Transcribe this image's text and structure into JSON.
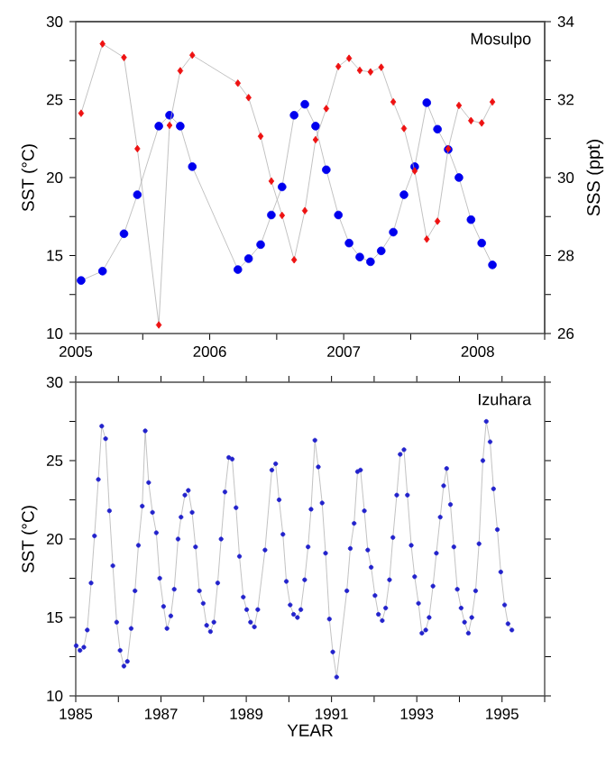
{
  "chart_data": [
    {
      "type": "line",
      "title": "Mosulpo",
      "ylabel": "SST (°C)",
      "y2label": "SSS (ppt)",
      "x": [
        2005.04,
        2005.2,
        2005.36,
        2005.46,
        2005.62,
        2005.7,
        2005.78,
        2005.87,
        2006.21,
        2006.29,
        2006.38,
        2006.46,
        2006.54,
        2006.63,
        2006.71,
        2006.79,
        2006.87,
        2006.96,
        2007.04,
        2007.12,
        2007.2,
        2007.28,
        2007.37,
        2007.45,
        2007.53,
        2007.62,
        2007.7,
        2007.78,
        2007.86,
        2007.95,
        2008.03,
        2008.11
      ],
      "series": [
        {
          "color": "#0000ee",
          "marker": "circle",
          "values": [
            13.4,
            14.0,
            16.4,
            18.9,
            23.3,
            24.0,
            23.3,
            20.7,
            14.1,
            14.8,
            15.7,
            17.6,
            19.4,
            24.0,
            24.7,
            23.3,
            20.5,
            17.6,
            15.8,
            14.9,
            14.6,
            15.3,
            16.5,
            18.9,
            20.7,
            24.8,
            23.1,
            21.8,
            20.0,
            17.3,
            15.8,
            14.4
          ]
        },
        {
          "color": "#ee1111",
          "marker": "diamond",
          "axis": "y2",
          "values": [
            31.65,
            33.43,
            33.08,
            30.74,
            26.22,
            31.34,
            32.74,
            33.14,
            32.42,
            32.05,
            31.06,
            29.91,
            29.03,
            27.89,
            29.15,
            30.97,
            31.77,
            32.85,
            33.06,
            32.75,
            32.71,
            32.83,
            31.94,
            31.26,
            30.17,
            28.42,
            28.88,
            30.74,
            31.85,
            31.46,
            31.4,
            31.94
          ]
        }
      ],
      "xlim": [
        2005,
        2008.5
      ],
      "xticks": [
        2005,
        {
          "value": 2005.5,
          "label": null
        },
        2006,
        {
          "value": 2006.5,
          "label": null
        },
        2007,
        {
          "value": 2007.5,
          "label": null
        },
        2008,
        {
          "value": 2008.5,
          "label": null
        }
      ],
      "ylim": [
        10,
        30
      ],
      "yticks": [
        10,
        {
          "value": 12.5,
          "label": null
        },
        15,
        {
          "value": 17.5,
          "label": null
        },
        20,
        {
          "value": 22.5,
          "label": null
        },
        25,
        {
          "value": 27.5,
          "label": null
        },
        30
      ],
      "y2lim": [
        26,
        34
      ],
      "y2ticks": [
        26,
        {
          "value": 27,
          "label": null
        },
        28,
        {
          "value": 29,
          "label": null
        },
        30,
        {
          "value": 31,
          "label": null
        },
        32,
        {
          "value": 33,
          "label": null
        },
        34
      ]
    },
    {
      "type": "line",
      "title": "Izuhara",
      "ylabel": "SST (°C)",
      "xlabel": "YEAR",
      "series": [
        {
          "color": "#2222cc",
          "marker": "circle",
          "x": [
            1985.01,
            1985.1,
            1985.19,
            1985.27,
            1985.36,
            1985.44,
            1985.53,
            1985.61,
            1985.7,
            1985.79,
            1985.87,
            1985.96,
            1986.04,
            1986.13,
            1986.21,
            1986.3,
            1986.39,
            1986.47,
            1986.56,
            1986.63,
            1986.71,
            1986.8,
            1986.89,
            1986.97,
            1987.06,
            1987.14,
            1987.23,
            1987.31,
            1987.4,
            1987.47,
            1987.56,
            1987.64,
            1987.73,
            1987.81,
            1987.9,
            1987.99,
            1988.07,
            1988.16,
            1988.24,
            1988.33,
            1988.41,
            1988.5,
            1988.59,
            1988.67,
            1988.76,
            1988.84,
            1988.93,
            1989.01,
            1989.1,
            1989.19,
            1989.27,
            1989.44,
            1989.6,
            1989.69,
            1989.77,
            1989.86,
            1989.94,
            1990.03,
            1990.11,
            1990.2,
            1990.28,
            1990.37,
            1990.45,
            1990.52,
            1990.61,
            1990.69,
            1990.78,
            1990.86,
            1990.95,
            1991.03,
            1991.12,
            1991.36,
            1991.44,
            1991.53,
            1991.61,
            1991.68,
            1991.77,
            1991.85,
            1991.93,
            1992.02,
            1992.1,
            1992.19,
            1992.27,
            1992.36,
            1992.44,
            1992.53,
            1992.61,
            1992.7,
            1992.78,
            1992.87,
            1992.95,
            1993.04,
            1993.12,
            1993.21,
            1993.29,
            1993.38,
            1993.46,
            1993.55,
            1993.63,
            1993.7,
            1993.79,
            1993.87,
            1993.95,
            1994.04,
            1994.12,
            1994.21,
            1994.29,
            1994.38,
            1994.46,
            1994.55,
            1994.63,
            1994.72,
            1994.8,
            1994.89,
            1994.97,
            1995.06,
            1995.14,
            1995.23
          ],
          "values": [
            13.2,
            12.9,
            13.1,
            14.2,
            17.2,
            20.2,
            23.8,
            27.2,
            26.4,
            21.8,
            18.3,
            14.7,
            12.9,
            11.9,
            12.2,
            14.3,
            16.7,
            19.6,
            22.1,
            26.9,
            23.6,
            21.7,
            20.4,
            17.5,
            15.7,
            14.3,
            15.1,
            16.8,
            20.0,
            21.4,
            22.8,
            23.1,
            21.7,
            19.5,
            16.7,
            15.9,
            14.5,
            14.1,
            14.7,
            17.2,
            20.0,
            23.0,
            25.2,
            25.1,
            22.0,
            18.9,
            16.3,
            15.5,
            14.7,
            14.4,
            15.5,
            19.3,
            24.4,
            24.8,
            22.5,
            20.3,
            17.3,
            15.8,
            15.2,
            15.0,
            15.5,
            17.4,
            19.5,
            21.9,
            26.3,
            24.6,
            22.3,
            19.1,
            14.9,
            12.8,
            11.2,
            16.7,
            19.4,
            21.0,
            24.3,
            24.4,
            21.8,
            19.3,
            18.2,
            16.4,
            15.2,
            14.8,
            15.6,
            17.4,
            20.1,
            22.8,
            25.4,
            25.7,
            22.8,
            19.6,
            17.6,
            15.9,
            14.0,
            14.2,
            15.0,
            17.0,
            19.1,
            21.4,
            23.4,
            24.5,
            22.2,
            19.5,
            16.8,
            15.6,
            14.7,
            14.0,
            15.0,
            16.7,
            19.7,
            25.0,
            27.5,
            26.2,
            23.2,
            20.6,
            17.9,
            15.8,
            14.6,
            14.2
          ]
        }
      ],
      "xlim": [
        1985,
        1996
      ],
      "xticks": [
        1985,
        {
          "value": 1986,
          "label": null
        },
        1987,
        {
          "value": 1988,
          "label": null
        },
        1989,
        {
          "value": 1990,
          "label": null
        },
        1991,
        {
          "value": 1992,
          "label": null
        },
        1993,
        {
          "value": 1994,
          "label": null
        },
        1995,
        {
          "value": 1996,
          "label": null
        }
      ],
      "ylim": [
        10,
        30
      ],
      "yticks": [
        10,
        {
          "value": 12.5,
          "label": null
        },
        15,
        {
          "value": 17.5,
          "label": null
        },
        20,
        {
          "value": 22.5,
          "label": null
        },
        25,
        {
          "value": 27.5,
          "label": null
        },
        30
      ]
    }
  ]
}
